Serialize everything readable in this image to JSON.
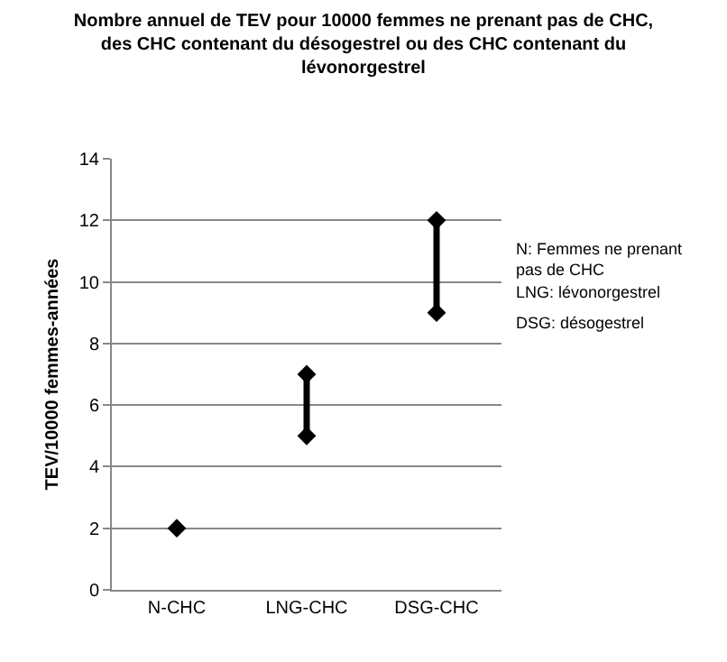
{
  "chart_data": {
    "type": "line",
    "title": "Nombre annuel de TEV pour 10000 femmes ne prenant pas de CHC, des CHC contenant du désogestrel ou des CHC contenant du lévonorgestrel",
    "ylabel": "TEV/10000 femmes-années",
    "categories": [
      "N-CHC",
      "LNG-CHC",
      "DSG-CHC"
    ],
    "series": [
      {
        "color": "#000000",
        "x": [
          "N-CHC"
        ],
        "values": [
          2
        ]
      },
      {
        "color": "#000000",
        "x": [
          "LNG-CHC",
          "LNG-CHC"
        ],
        "values": [
          5,
          7
        ]
      },
      {
        "color": "#000000",
        "x": [
          "DSG-CHC",
          "DSG-CHC"
        ],
        "values": [
          9,
          12
        ]
      }
    ],
    "marker": "diamond",
    "line_style": "solid",
    "ylim": [
      0,
      14
    ],
    "yticks": [
      0,
      2,
      4,
      6,
      8,
      10,
      12,
      14
    ],
    "grid": "y",
    "annotations": [
      "N: Femmes ne prenant pas de CHC",
      "LNG: lévonorgestrel",
      "DSG: désogestrel"
    ]
  }
}
